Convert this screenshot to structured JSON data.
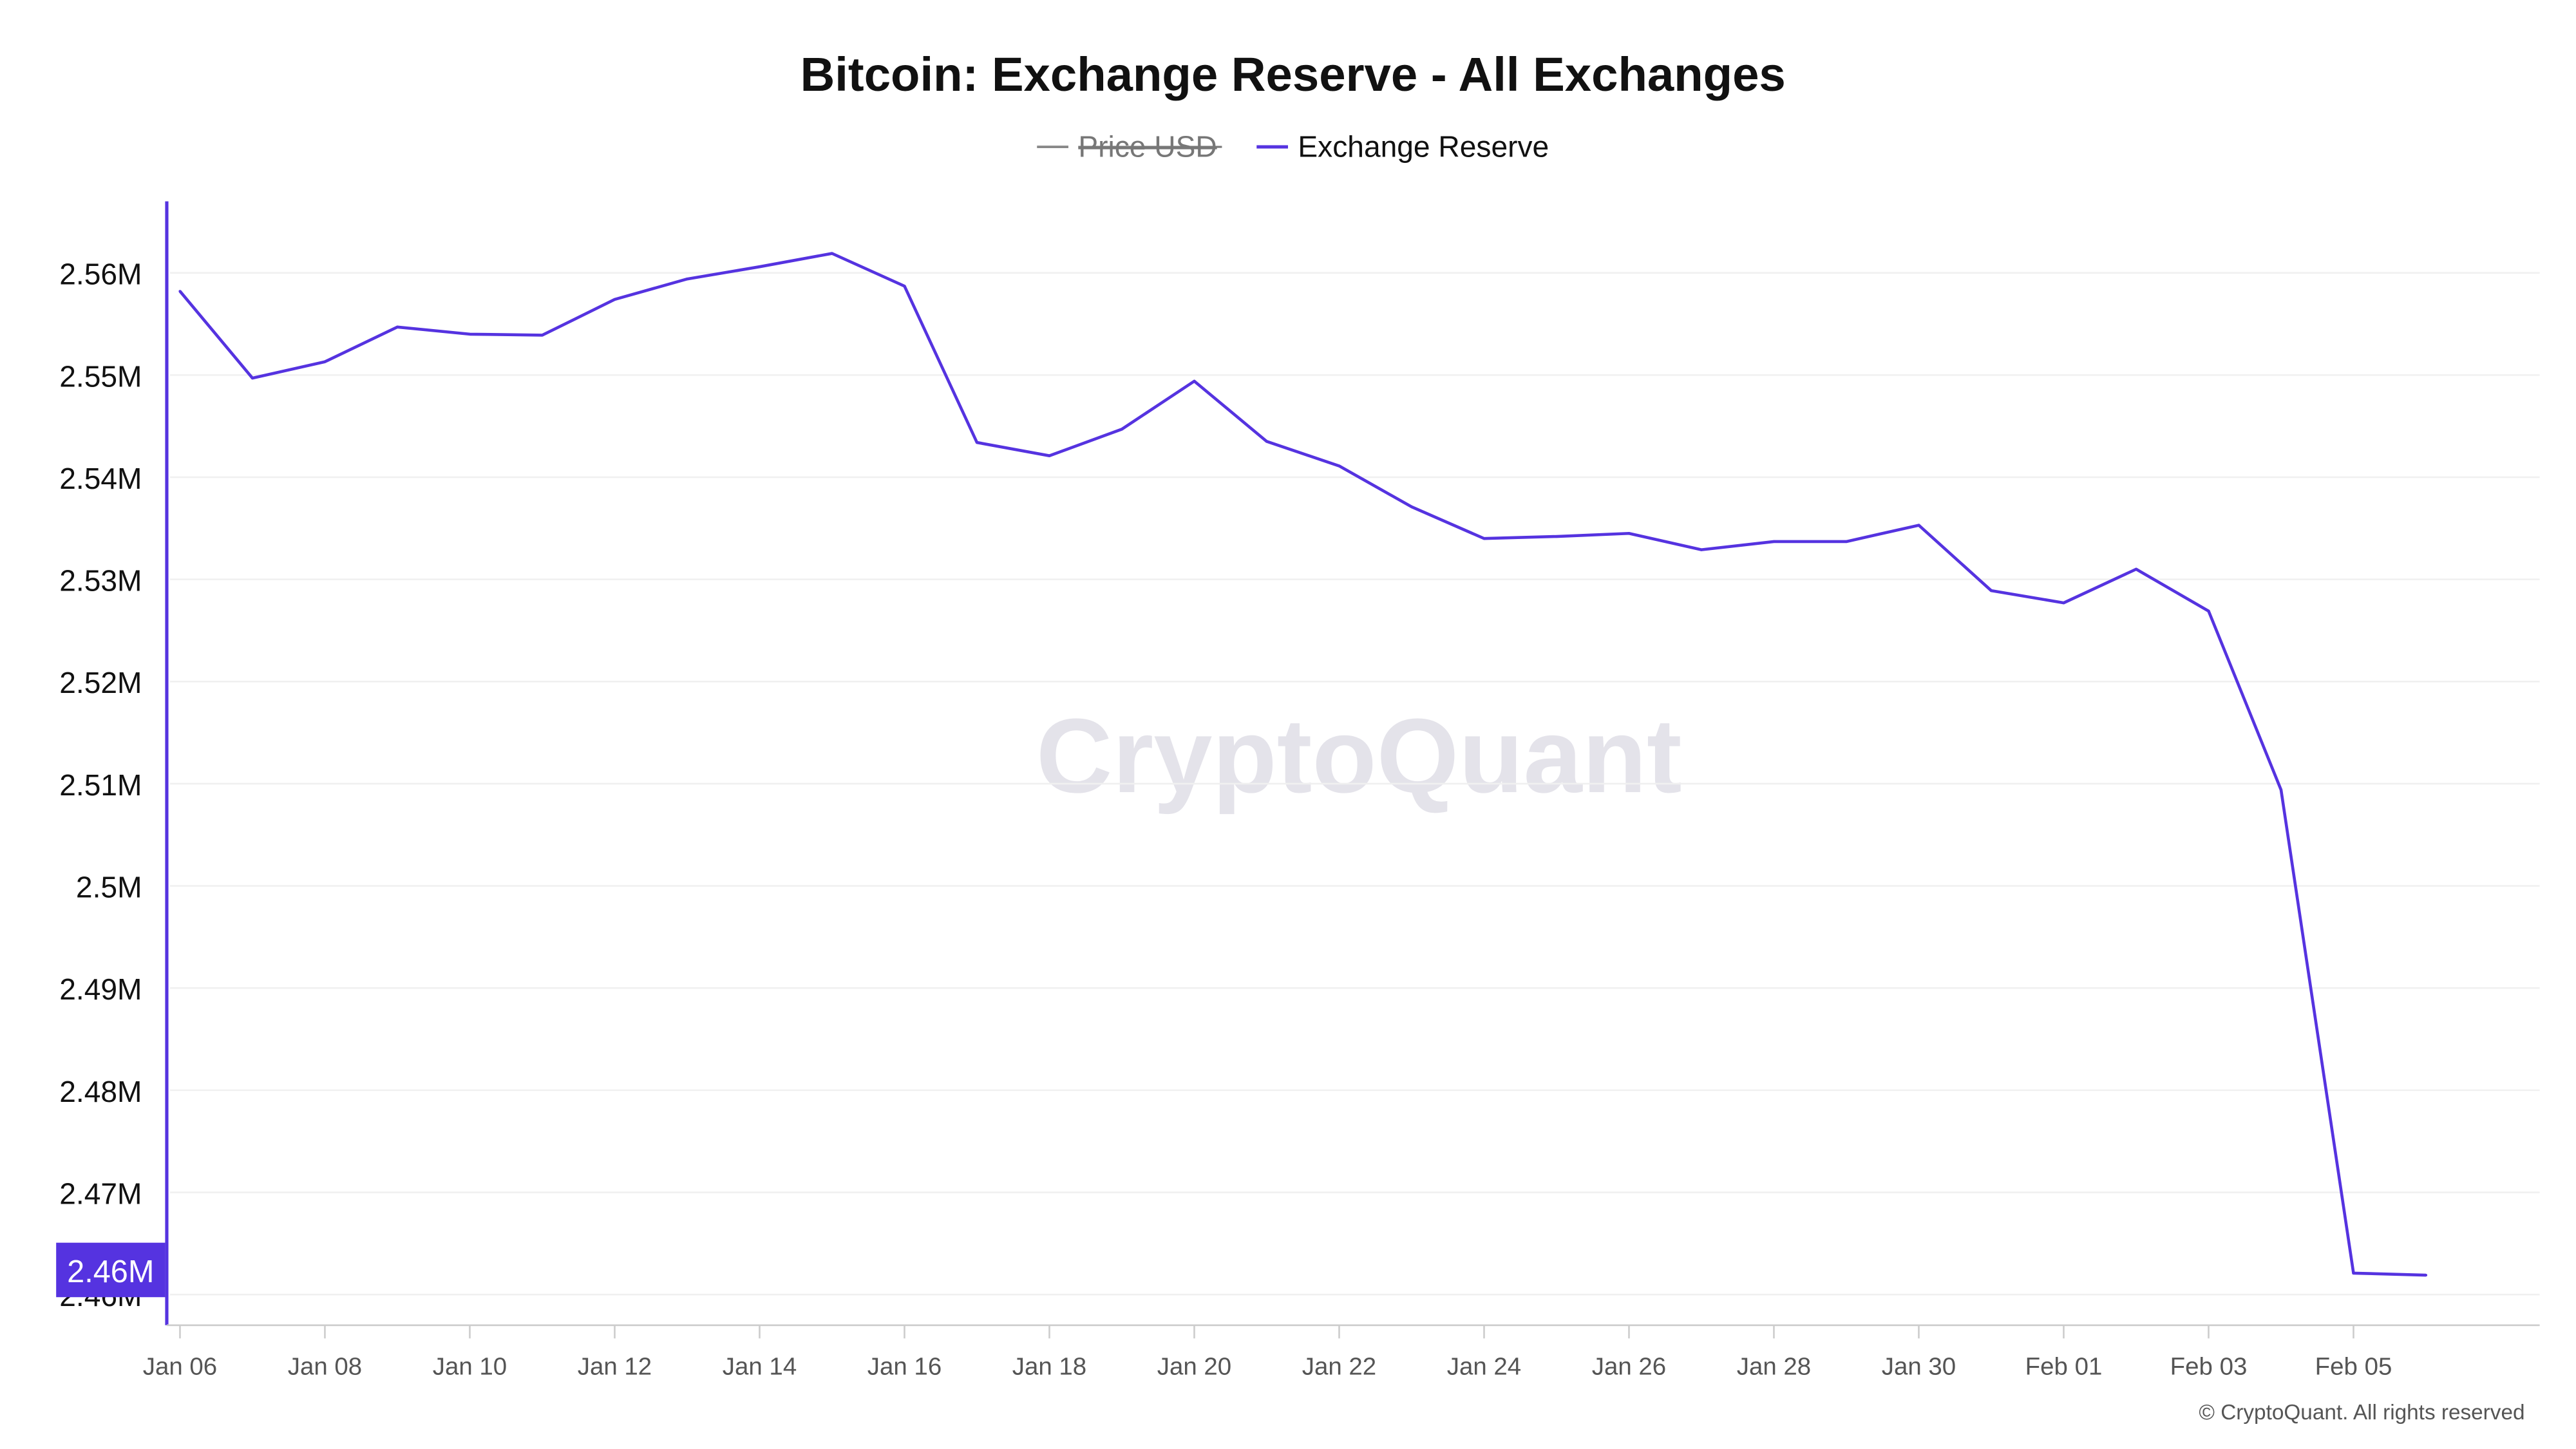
{
  "chart_data": {
    "type": "line",
    "title": "Bitcoin: Exchange Reserve - All Exchanges",
    "legend": {
      "placement": "top-center",
      "entries": [
        {
          "name": "Price USD",
          "color": "#888888",
          "hidden": true
        },
        {
          "name": "Exchange Reserve",
          "color": "#5533e0",
          "hidden": false
        }
      ]
    },
    "watermark": "CryptoQuant",
    "copyright": "© CryptoQuant. All rights reserved",
    "y_axis": {
      "ticks": [
        "2.46M",
        "2.47M",
        "2.48M",
        "2.49M",
        "2.5M",
        "2.51M",
        "2.52M",
        "2.53M",
        "2.54M",
        "2.55M",
        "2.56M"
      ],
      "tick_values": [
        2.46,
        2.47,
        2.48,
        2.49,
        2.5,
        2.51,
        2.52,
        2.53,
        2.54,
        2.55,
        2.56
      ],
      "range": [
        2.457,
        2.567
      ],
      "unit": "M BTC",
      "highlight_label": "2.46M",
      "grid": true
    },
    "x_axis": {
      "ticks": [
        "Jan 06",
        "Jan 08",
        "Jan 10",
        "Jan 12",
        "Jan 14",
        "Jan 16",
        "Jan 18",
        "Jan 20",
        "Jan 22",
        "Jan 24",
        "Jan 26",
        "Jan 28",
        "Jan 30",
        "Feb 01",
        "Feb 03",
        "Feb 05"
      ],
      "range": [
        "Jan 06",
        "Feb 07"
      ]
    },
    "series": [
      {
        "name": "Exchange Reserve",
        "color": "#5533e0",
        "x": [
          "Jan 06",
          "Jan 07",
          "Jan 08",
          "Jan 09",
          "Jan 10",
          "Jan 11",
          "Jan 12",
          "Jan 13",
          "Jan 14",
          "Jan 15",
          "Jan 16",
          "Jan 17",
          "Jan 18",
          "Jan 19",
          "Jan 20",
          "Jan 21",
          "Jan 22",
          "Jan 23",
          "Jan 24",
          "Jan 25",
          "Jan 26",
          "Jan 27",
          "Jan 28",
          "Jan 29",
          "Jan 30",
          "Jan 31",
          "Feb 01",
          "Feb 02",
          "Feb 03",
          "Feb 04",
          "Feb 05",
          "Feb 06"
        ],
        "values": [
          2.5582,
          2.5497,
          2.5513,
          2.5547,
          2.554,
          2.5539,
          2.5574,
          2.5594,
          2.5606,
          2.5619,
          2.5587,
          2.5434,
          2.5421,
          2.5447,
          2.5494,
          2.5435,
          2.5411,
          2.5371,
          2.534,
          2.5342,
          2.5345,
          2.5329,
          2.5337,
          2.5337,
          2.5353,
          2.5289,
          2.5277,
          2.531,
          2.5269,
          2.5094,
          2.4621,
          2.4619
        ]
      }
    ]
  }
}
